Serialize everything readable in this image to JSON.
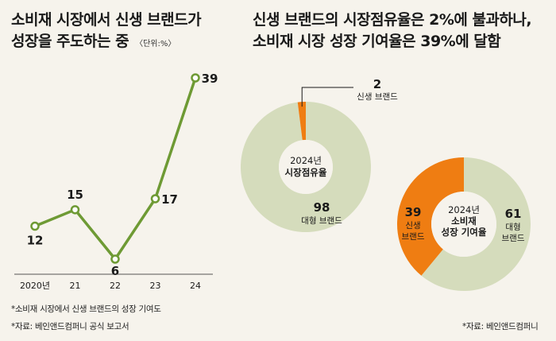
{
  "left": {
    "title_line1": "소비재 시장에서 신생 브랜드가",
    "title_line2": "성장을 주도하는 중",
    "unit": "〈단위:%〉",
    "footnote1": "*소비재 시장에서 신생 브랜드의 성장 기여도",
    "footnote2": "*자료: 베인앤드컴퍼니 공식 보고서"
  },
  "right": {
    "title_line1": "신생 브랜드의 시장점유율은 2%에 불과하나,",
    "title_line2": "소비재 시장 성장 기여율은 39%에 달함",
    "footnote": "*자료: 베인앤드컴퍼니"
  },
  "colors": {
    "line": "#6e9a34",
    "orange": "#ef7d12",
    "beige": "#d5dcbc",
    "inner": "#f6f3ec"
  },
  "chart_data": [
    {
      "type": "line",
      "title": "소비재 시장에서 신생 브랜드가 성장을 주도하는 중",
      "unit": "〈단위:%〉",
      "categories": [
        "2020년",
        "21",
        "22",
        "23",
        "24"
      ],
      "values": [
        12,
        15,
        6,
        17,
        39
      ],
      "data_labels": [
        "12",
        "15",
        "6",
        "17",
        "39"
      ],
      "ylim": [
        0,
        40
      ],
      "grid": false
    },
    {
      "type": "pie",
      "variant": "donut",
      "center_label": [
        "2024년",
        "시장점유율"
      ],
      "slices": [
        {
          "name": "신생 브랜드",
          "value": 2,
          "label": "2",
          "color": "#ef7d12"
        },
        {
          "name": "대형 브랜드",
          "value": 98,
          "label": "98",
          "color": "#d5dcbc"
        }
      ]
    },
    {
      "type": "pie",
      "variant": "donut",
      "center_label": [
        "2024년",
        "소비재",
        "성장 기여율"
      ],
      "slices": [
        {
          "name": "신생 브랜드",
          "value": 39,
          "label": "39",
          "color": "#ef7d12"
        },
        {
          "name": "대형 브랜드",
          "value": 61,
          "label": "61",
          "color": "#d5dcbc"
        }
      ]
    }
  ]
}
